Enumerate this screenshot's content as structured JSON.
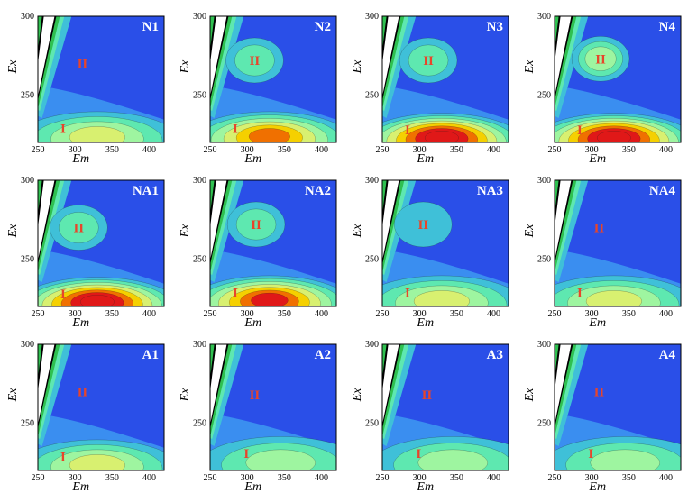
{
  "chart_data": [
    {
      "type": "heatmap",
      "label": "N1",
      "xlabel": "Em",
      "ylabel": "Ex",
      "xlim": [
        250,
        420
      ],
      "ylim": [
        220,
        300
      ],
      "xticks": [
        250,
        300,
        350,
        400
      ],
      "yticks": [
        250,
        300
      ],
      "region_labels": [
        "I",
        "II"
      ],
      "peak_I": {
        "x": 330,
        "y": 225,
        "level": 3
      },
      "peak_II": {
        "x": 310,
        "y": 270,
        "level": 0
      }
    },
    {
      "type": "heatmap",
      "label": "N2",
      "xlabel": "Em",
      "ylabel": "Ex",
      "xlim": [
        250,
        420
      ],
      "ylim": [
        220,
        300
      ],
      "xticks": [
        250,
        300,
        350,
        400
      ],
      "yticks": [
        250,
        300
      ],
      "region_labels": [
        "I",
        "II"
      ],
      "peak_I": {
        "x": 330,
        "y": 225,
        "level": 5
      },
      "peak_II": {
        "x": 310,
        "y": 272,
        "level": 2
      }
    },
    {
      "type": "heatmap",
      "label": "N3",
      "xlabel": "Em",
      "ylabel": "Ex",
      "xlim": [
        250,
        420
      ],
      "ylim": [
        220,
        300
      ],
      "xticks": [
        250,
        300,
        350,
        400
      ],
      "yticks": [
        250,
        300
      ],
      "region_labels": [
        "I",
        "II"
      ],
      "peak_I": {
        "x": 330,
        "y": 224,
        "level": 7
      },
      "peak_II": {
        "x": 312,
        "y": 272,
        "level": 2
      }
    },
    {
      "type": "heatmap",
      "label": "N4",
      "xlabel": "Em",
      "ylabel": "Ex",
      "xlim": [
        250,
        420
      ],
      "ylim": [
        220,
        300
      ],
      "xticks": [
        250,
        300,
        350,
        400
      ],
      "yticks": [
        250,
        300
      ],
      "region_labels": [
        "I",
        "II"
      ],
      "peak_I": {
        "x": 330,
        "y": 224,
        "level": 7
      },
      "peak_II": {
        "x": 312,
        "y": 273,
        "level": 3
      }
    },
    {
      "type": "heatmap",
      "label": "NA1",
      "xlabel": "Em",
      "ylabel": "Ex",
      "xlim": [
        250,
        420
      ],
      "ylim": [
        220,
        300
      ],
      "xticks": [
        250,
        300,
        350,
        400
      ],
      "yticks": [
        250,
        300
      ],
      "region_labels": [
        "I",
        "II"
      ],
      "peak_I": {
        "x": 330,
        "y": 224,
        "level": 7
      },
      "peak_II": {
        "x": 305,
        "y": 270,
        "level": 2
      }
    },
    {
      "type": "heatmap",
      "label": "NA2",
      "xlabel": "Em",
      "ylabel": "Ex",
      "xlim": [
        250,
        420
      ],
      "ylim": [
        220,
        300
      ],
      "xticks": [
        250,
        300,
        350,
        400
      ],
      "yticks": [
        250,
        300
      ],
      "region_labels": [
        "I",
        "II"
      ],
      "peak_I": {
        "x": 330,
        "y": 225,
        "level": 6
      },
      "peak_II": {
        "x": 312,
        "y": 272,
        "level": 2
      }
    },
    {
      "type": "heatmap",
      "label": "NA3",
      "xlabel": "Em",
      "ylabel": "Ex",
      "xlim": [
        250,
        420
      ],
      "ylim": [
        220,
        300
      ],
      "xticks": [
        250,
        300,
        350,
        400
      ],
      "yticks": [
        250,
        300
      ],
      "region_labels": [
        "I",
        "II"
      ],
      "peak_I": {
        "x": 330,
        "y": 225,
        "level": 3
      },
      "peak_II": {
        "x": 305,
        "y": 272,
        "level": 1
      }
    },
    {
      "type": "heatmap",
      "label": "NA4",
      "xlabel": "Em",
      "ylabel": "Ex",
      "xlim": [
        250,
        420
      ],
      "ylim": [
        220,
        300
      ],
      "xticks": [
        250,
        300,
        350,
        400
      ],
      "yticks": [
        250,
        300
      ],
      "region_labels": [
        "I",
        "II"
      ],
      "peak_I": {
        "x": 330,
        "y": 225,
        "level": 3
      },
      "peak_II": {
        "x": 310,
        "y": 270,
        "level": 0
      }
    },
    {
      "type": "heatmap",
      "label": "A1",
      "xlabel": "Em",
      "ylabel": "Ex",
      "xlim": [
        250,
        420
      ],
      "ylim": [
        220,
        300
      ],
      "xticks": [
        250,
        300,
        350,
        400
      ],
      "yticks": [
        250,
        300
      ],
      "region_labels": [
        "I",
        "II"
      ],
      "peak_I": {
        "x": 330,
        "y": 225,
        "level": 3
      },
      "peak_II": {
        "x": 310,
        "y": 270,
        "level": 0
      }
    },
    {
      "type": "heatmap",
      "label": "A2",
      "xlabel": "Em",
      "ylabel": "Ex",
      "xlim": [
        250,
        420
      ],
      "ylim": [
        220,
        300
      ],
      "xticks": [
        250,
        300,
        350,
        400
      ],
      "yticks": [
        250,
        300
      ],
      "region_labels": [
        "I",
        "II"
      ],
      "peak_I": {
        "x": 345,
        "y": 227,
        "level": 2
      },
      "peak_II": {
        "x": 310,
        "y": 268,
        "level": 0
      }
    },
    {
      "type": "heatmap",
      "label": "A3",
      "xlabel": "Em",
      "ylabel": "Ex",
      "xlim": [
        250,
        420
      ],
      "ylim": [
        220,
        300
      ],
      "xticks": [
        250,
        300,
        350,
        400
      ],
      "yticks": [
        250,
        300
      ],
      "region_labels": [
        "I",
        "II"
      ],
      "peak_I": {
        "x": 345,
        "y": 227,
        "level": 2
      },
      "peak_II": {
        "x": 310,
        "y": 268,
        "level": 0
      }
    },
    {
      "type": "heatmap",
      "label": "A4",
      "xlabel": "Em",
      "ylabel": "Ex",
      "xlim": [
        250,
        420
      ],
      "ylim": [
        220,
        300
      ],
      "xticks": [
        250,
        300,
        350,
        400
      ],
      "yticks": [
        250,
        300
      ],
      "region_labels": [
        "I",
        "II"
      ],
      "peak_I": {
        "x": 345,
        "y": 227,
        "level": 2
      },
      "peak_II": {
        "x": 310,
        "y": 270,
        "level": 0
      }
    }
  ],
  "colors": {
    "background": "#2a4fe8",
    "levels": [
      "#3a8ef0",
      "#3fc0d8",
      "#5ee8b0",
      "#9ef5a0",
      "#d8f070",
      "#f5d000",
      "#f07000",
      "#e01818"
    ],
    "ridge_band": [
      "#3fc0d8",
      "#5ee8b0",
      "#2fc050",
      "#000000",
      "#ffffff"
    ],
    "label_text": "#ffffff",
    "region_text": "#e8452a"
  }
}
